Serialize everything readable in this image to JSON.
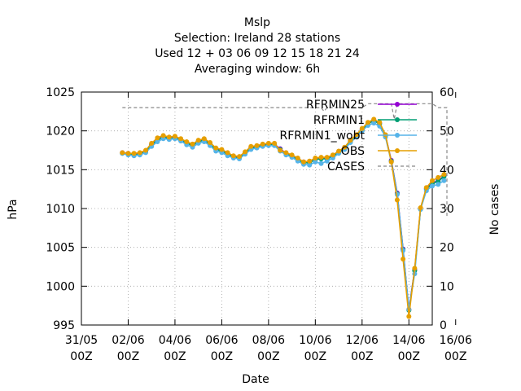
{
  "chart_data": {
    "type": "line",
    "title_lines": [
      "Mslp",
      "Selection: Ireland      28 stations",
      "Used  12 + 03 06 09 12 15 18 21 24",
      "Averaging window:  6h"
    ],
    "xlabel": "Date",
    "ylabel": "hPa",
    "y2label": "No cases",
    "x_range_hours": [
      0,
      360
    ],
    "ylim": [
      995,
      1025
    ],
    "y2lim": [
      0,
      60
    ],
    "x_ticks": [
      {
        "hour": 0,
        "line1": "31/05",
        "line2": "00Z"
      },
      {
        "hour": 48,
        "line1": "02/06",
        "line2": "00Z"
      },
      {
        "hour": 96,
        "line1": "04/06",
        "line2": "00Z"
      },
      {
        "hour": 144,
        "line1": "06/06",
        "line2": "00Z"
      },
      {
        "hour": 192,
        "line1": "08/06",
        "line2": "00Z"
      },
      {
        "hour": 240,
        "line1": "10/06",
        "line2": "00Z"
      },
      {
        "hour": 288,
        "line1": "12/06",
        "line2": "00Z"
      },
      {
        "hour": 336,
        "line1": "14/06",
        "line2": "00Z"
      },
      {
        "hour": 384,
        "line1": "16/06",
        "line2": "00Z"
      }
    ],
    "y_ticks": [
      995,
      1000,
      1005,
      1010,
      1015,
      1020,
      1025
    ],
    "y2_ticks": [
      0,
      10,
      20,
      30,
      40,
      50,
      60
    ],
    "grid": true,
    "legend_position": "top-right",
    "x_hours": [
      42,
      48,
      54,
      60,
      66,
      72,
      78,
      84,
      90,
      96,
      102,
      108,
      114,
      120,
      126,
      132,
      138,
      144,
      150,
      156,
      162,
      168,
      174,
      180,
      186,
      192,
      198,
      204,
      210,
      216,
      222,
      228,
      234,
      240,
      246,
      252,
      258,
      264,
      270,
      276,
      282,
      288,
      294,
      300,
      306,
      312,
      318,
      324,
      330,
      336,
      342,
      348,
      354,
      360,
      366,
      372
    ],
    "series": [
      {
        "name": "RFRMIN25",
        "color": "#9400d3",
        "marker": "filled-circle",
        "values": [
          1017.2,
          1017.1,
          1017.0,
          1017.1,
          1017.4,
          1018.3,
          1018.9,
          1019.3,
          1019.1,
          1019.2,
          1018.9,
          1018.5,
          1018.2,
          1018.7,
          1018.9,
          1018.4,
          1017.7,
          1017.5,
          1017.1,
          1016.7,
          1016.6,
          1017.2,
          1017.9,
          1018.0,
          1018.2,
          1018.3,
          1018.3,
          1017.7,
          1017.1,
          1016.8,
          1016.4,
          1016.0,
          1016.0,
          1016.4,
          1016.5,
          1016.5,
          1016.8,
          1017.3,
          1017.8,
          1018.7,
          1019.4,
          1020.2,
          1021.0,
          1021.4,
          1021.0,
          1019.4,
          1016.2,
          1012.0,
          1004.8,
          997.0,
          1002.1,
          1010.0,
          1012.6,
          1013.3,
          1013.6,
          1014.2
        ]
      },
      {
        "name": "RFRMIN1",
        "color": "#009e73",
        "marker": "filled-circle",
        "values": [
          1017.1,
          1017.0,
          1016.9,
          1017.0,
          1017.3,
          1018.2,
          1018.8,
          1019.2,
          1019.0,
          1019.1,
          1018.8,
          1018.4,
          1018.1,
          1018.6,
          1018.8,
          1018.3,
          1017.6,
          1017.4,
          1017.0,
          1016.6,
          1016.5,
          1017.1,
          1017.8,
          1017.9,
          1018.1,
          1018.2,
          1018.2,
          1017.6,
          1017.0,
          1016.7,
          1016.3,
          1015.9,
          1015.9,
          1016.3,
          1016.4,
          1016.4,
          1016.7,
          1017.2,
          1017.7,
          1018.6,
          1019.3,
          1020.1,
          1020.9,
          1021.3,
          1020.9,
          1019.3,
          1016.1,
          1011.9,
          1004.7,
          996.9,
          1002.0,
          1009.9,
          1012.5,
          1013.2,
          1013.5,
          1014.1
        ]
      },
      {
        "name": "RFRMIN1_wobt",
        "color": "#56b4e9",
        "marker": "filled-circle",
        "values": [
          1017.1,
          1016.9,
          1016.8,
          1016.9,
          1017.2,
          1018.0,
          1018.6,
          1019.0,
          1018.9,
          1019.0,
          1018.7,
          1018.2,
          1017.9,
          1018.4,
          1018.6,
          1018.1,
          1017.4,
          1017.2,
          1016.8,
          1016.5,
          1016.4,
          1017.0,
          1017.6,
          1017.8,
          1018.0,
          1018.1,
          1018.1,
          1017.4,
          1016.9,
          1016.6,
          1016.1,
          1015.7,
          1015.6,
          1016.0,
          1015.8,
          1016.1,
          1016.5,
          1017.1,
          1017.6,
          1018.5,
          1019.2,
          1020.0,
          1020.7,
          1021.0,
          1020.6,
          1019.2,
          1016.0,
          1011.8,
          1004.6,
          997.0,
          1001.6,
          1009.9,
          1012.3,
          1012.9,
          1013.1,
          1013.6
        ]
      },
      {
        "name": "OBS",
        "color": "#e69f00",
        "marker": "filled-circle",
        "values": [
          1017.2,
          1017.1,
          1017.1,
          1017.2,
          1017.5,
          1018.4,
          1019.1,
          1019.4,
          1019.2,
          1019.3,
          1019.0,
          1018.6,
          1018.3,
          1018.8,
          1019.0,
          1018.5,
          1017.8,
          1017.6,
          1017.2,
          1016.8,
          1016.7,
          1017.3,
          1018.0,
          1018.1,
          1018.3,
          1018.4,
          1018.4,
          1017.5,
          1017.2,
          1016.9,
          1016.5,
          1016.0,
          1016.1,
          1016.5,
          1016.6,
          1016.6,
          1016.9,
          1017.4,
          1017.9,
          1018.8,
          1019.5,
          1020.3,
          1021.1,
          1021.5,
          1021.1,
          1019.5,
          1016.0,
          1011.1,
          1003.5,
          996.1,
          1002.3,
          1010.1,
          1012.7,
          1013.6,
          1014.0,
          1014.4
        ]
      },
      {
        "name": "CASES",
        "color": "#888888",
        "dash": "dashed",
        "axis": "y2",
        "x_hours": [
          42,
          246,
          249,
          252,
          288,
          294,
          306,
          312,
          318,
          321,
          324,
          330,
          336,
          342,
          348,
          354,
          360,
          366,
          372,
          375,
          375
        ],
        "values": [
          56,
          56,
          55,
          56,
          56,
          57,
          57,
          57,
          57,
          53,
          57,
          57,
          57,
          57,
          57,
          57,
          57,
          56,
          56,
          56,
          28
        ]
      }
    ],
    "legend": [
      {
        "label": "RFRMIN25",
        "color": "#9400d3"
      },
      {
        "label": "RFRMIN1",
        "color": "#009e73"
      },
      {
        "label": "RFRMIN1_wobt",
        "color": "#56b4e9"
      },
      {
        "label": "OBS",
        "color": "#e69f00"
      },
      {
        "label": "CASES",
        "color": "#888888",
        "dash": true
      }
    ]
  }
}
